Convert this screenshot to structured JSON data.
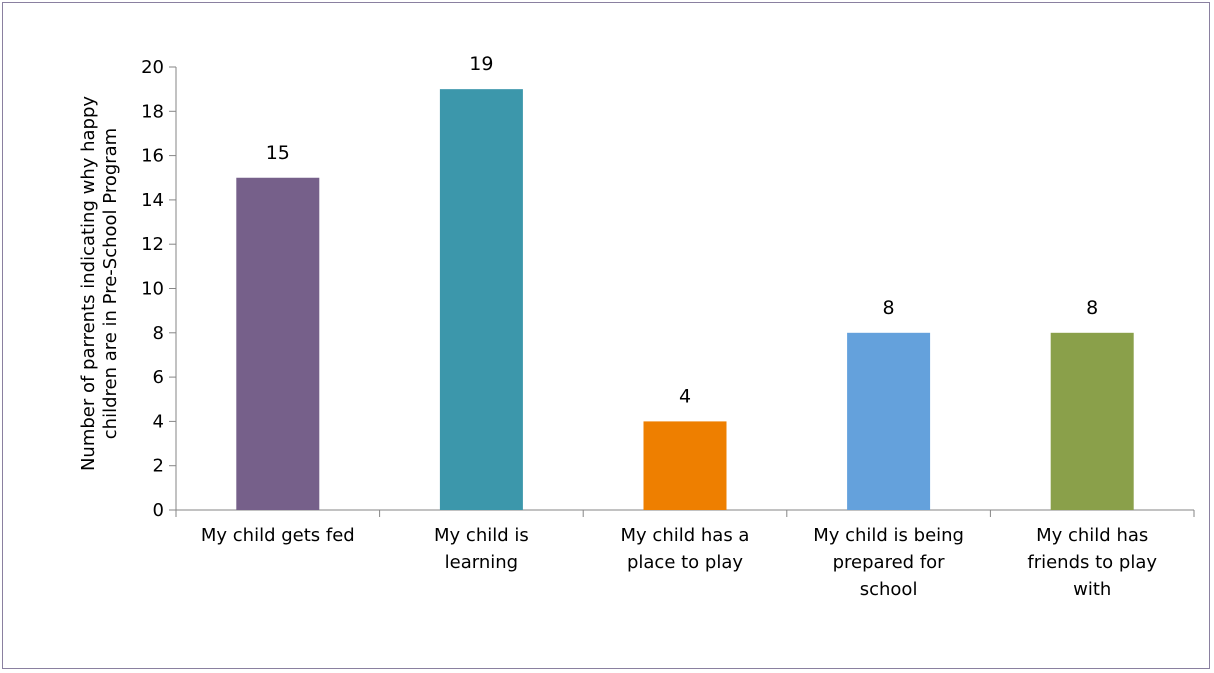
{
  "chart_data": {
    "type": "bar",
    "title": "",
    "xlabel": "",
    "ylabel": "Number of parrents indicating why happy children are in Pre-School Program",
    "ylabel_lines": [
      "Number of parrents indicating why happy",
      "children are in Pre-School Program"
    ],
    "categories": [
      "My child gets fed",
      "My child is learning",
      "My child has a place to play",
      "My child is being prepared for school",
      "My child has friends to play with"
    ],
    "category_lines": [
      [
        "My child gets fed"
      ],
      [
        "My child is",
        "learning"
      ],
      [
        "My child has a",
        "place to play"
      ],
      [
        "My child is being",
        "prepared for",
        "school"
      ],
      [
        "My child has",
        "friends to play",
        "with"
      ]
    ],
    "values": [
      15,
      19,
      4,
      8,
      8
    ],
    "colors": [
      "#76608a",
      "#3c97ab",
      "#ee7f00",
      "#64a1dc",
      "#8aa04a"
    ],
    "ylim": [
      0,
      20
    ],
    "yticks": [
      0,
      2,
      4,
      6,
      8,
      10,
      12,
      14,
      16,
      18,
      20
    ],
    "grid": false,
    "legend": "none"
  }
}
